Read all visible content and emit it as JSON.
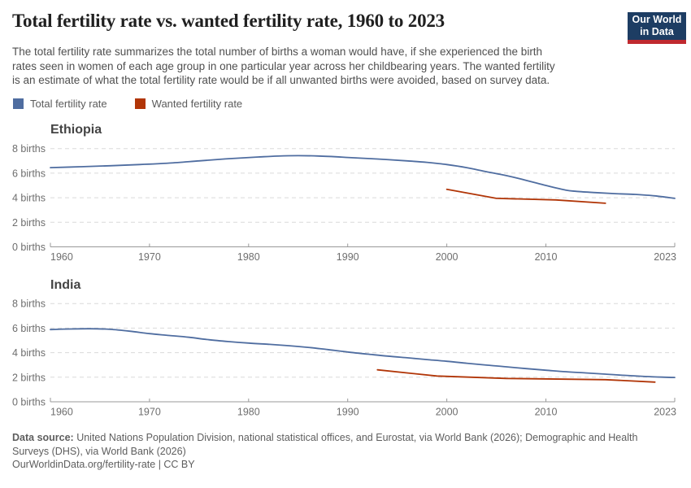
{
  "header": {
    "title": "Total fertility rate vs. wanted fertility rate, 1960 to 2023",
    "subtitle_lines": [
      "The total fertility rate summarizes the total number of births a woman would have, if she experienced the birth",
      "rates seen in women of each age group in one particular year across her childbearing years. The wanted fertility",
      "is an estimate of what the total fertility rate would be if all unwanted births were avoided, based on survey data."
    ],
    "logo": {
      "line1": "Our World",
      "line2": "in Data",
      "bg_color": "#1d3d63",
      "bar_color": "#c0292f"
    }
  },
  "legend": {
    "items": [
      {
        "label": "Total fertility rate",
        "color": "#4f6da0"
      },
      {
        "label": "Wanted fertility rate",
        "color": "#b13507"
      }
    ]
  },
  "chart_data": [
    {
      "type": "line",
      "title": "Ethiopia",
      "xlabel": "",
      "ylabel": "births",
      "xlim": [
        1960,
        2023
      ],
      "ylim": [
        0,
        8
      ],
      "grid": "dashed-horizontal",
      "legend_position": "top-left-shared",
      "xticks": [
        1960,
        1970,
        1980,
        1990,
        2000,
        2010,
        2023
      ],
      "yticks": [
        0,
        2,
        4,
        6,
        8
      ],
      "ytick_labels": [
        "0 births",
        "2 births",
        "4 births",
        "6 births",
        "8 births"
      ],
      "series": [
        {
          "name": "Total fertility rate",
          "color": "#4f6da0",
          "smooth": true,
          "points": [
            [
              1960,
              6.45
            ],
            [
              1963,
              6.52
            ],
            [
              1966,
              6.6
            ],
            [
              1969,
              6.7
            ],
            [
              1972,
              6.82
            ],
            [
              1975,
              7.0
            ],
            [
              1978,
              7.18
            ],
            [
              1981,
              7.32
            ],
            [
              1984,
              7.42
            ],
            [
              1987,
              7.4
            ],
            [
              1990,
              7.28
            ],
            [
              1993,
              7.15
            ],
            [
              1996,
              7.0
            ],
            [
              1998,
              6.88
            ],
            [
              2000,
              6.7
            ],
            [
              2002,
              6.45
            ],
            [
              2004,
              6.12
            ],
            [
              2006,
              5.8
            ],
            [
              2008,
              5.42
            ],
            [
              2010,
              5.0
            ],
            [
              2012,
              4.62
            ],
            [
              2013,
              4.52
            ],
            [
              2015,
              4.42
            ],
            [
              2017,
              4.33
            ],
            [
              2019,
              4.27
            ],
            [
              2021,
              4.15
            ],
            [
              2023,
              3.95
            ]
          ]
        },
        {
          "name": "Wanted fertility rate",
          "color": "#b13507",
          "smooth": false,
          "points": [
            [
              2000,
              4.68
            ],
            [
              2005,
              3.95
            ],
            [
              2011,
              3.82
            ],
            [
              2016,
              3.55
            ]
          ]
        }
      ]
    },
    {
      "type": "line",
      "title": "India",
      "xlabel": "",
      "ylabel": "births",
      "xlim": [
        1960,
        2023
      ],
      "ylim": [
        0,
        8
      ],
      "grid": "dashed-horizontal",
      "legend_position": "top-left-shared",
      "xticks": [
        1960,
        1970,
        1980,
        1990,
        2000,
        2010,
        2023
      ],
      "yticks": [
        0,
        2,
        4,
        6,
        8
      ],
      "ytick_labels": [
        "0 births",
        "2 births",
        "4 births",
        "6 births",
        "8 births"
      ],
      "series": [
        {
          "name": "Total fertility rate",
          "color": "#4f6da0",
          "smooth": true,
          "points": [
            [
              1960,
              5.88
            ],
            [
              1962,
              5.93
            ],
            [
              1964,
              5.95
            ],
            [
              1966,
              5.9
            ],
            [
              1968,
              5.75
            ],
            [
              1970,
              5.55
            ],
            [
              1972,
              5.4
            ],
            [
              1974,
              5.25
            ],
            [
              1976,
              5.05
            ],
            [
              1978,
              4.9
            ],
            [
              1980,
              4.78
            ],
            [
              1982,
              4.68
            ],
            [
              1984,
              4.57
            ],
            [
              1986,
              4.43
            ],
            [
              1988,
              4.25
            ],
            [
              1990,
              4.05
            ],
            [
              1992,
              3.88
            ],
            [
              1994,
              3.72
            ],
            [
              1996,
              3.58
            ],
            [
              1998,
              3.44
            ],
            [
              2000,
              3.3
            ],
            [
              2002,
              3.14
            ],
            [
              2004,
              2.99
            ],
            [
              2006,
              2.85
            ],
            [
              2008,
              2.7
            ],
            [
              2010,
              2.57
            ],
            [
              2012,
              2.45
            ],
            [
              2014,
              2.35
            ],
            [
              2016,
              2.25
            ],
            [
              2018,
              2.15
            ],
            [
              2020,
              2.06
            ],
            [
              2022,
              2.0
            ],
            [
              2023,
              1.98
            ]
          ]
        },
        {
          "name": "Wanted fertility rate",
          "color": "#b13507",
          "smooth": false,
          "points": [
            [
              1993,
              2.6
            ],
            [
              1999,
              2.1
            ],
            [
              2006,
              1.9
            ],
            [
              2016,
              1.8
            ],
            [
              2021,
              1.6
            ]
          ]
        }
      ]
    }
  ],
  "footer": {
    "source_label": "Data source:",
    "source_lines": [
      " United Nations Population Division, national statistical offices, and Eurostat, via World Bank (2026); Demographic and Health",
      "Surveys (DHS), via World Bank (2026)"
    ],
    "license_line": "OurWorldinData.org/fertility-rate | CC BY"
  },
  "colors": {
    "accent_blue": "#4f6da0",
    "accent_red": "#b13507",
    "grid": "#dadada",
    "axis": "#999999",
    "tick_text": "#6e6e6e"
  }
}
